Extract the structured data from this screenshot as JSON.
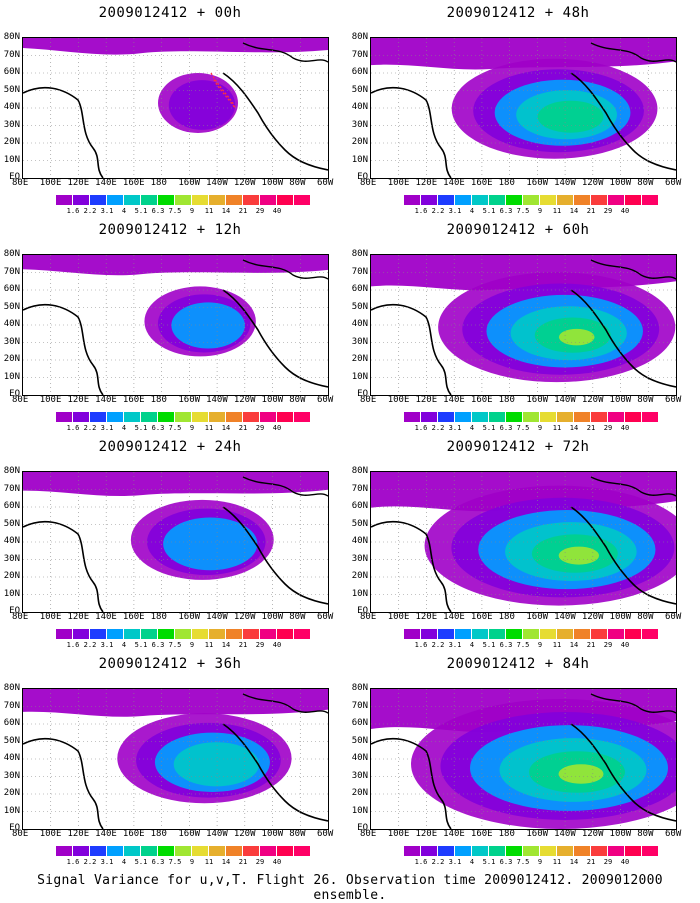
{
  "caption": "Signal Variance for u,v,T. Flight 26. Observation time 2009012412. 2009012000 ensemble.",
  "panels": [
    {
      "title": "2009012412 + 00h",
      "lead_hours": 0
    },
    {
      "title": "2009012412 + 48h",
      "lead_hours": 48
    },
    {
      "title": "2009012412 + 12h",
      "lead_hours": 12
    },
    {
      "title": "2009012412 + 60h",
      "lead_hours": 60
    },
    {
      "title": "2009012412 + 24h",
      "lead_hours": 24
    },
    {
      "title": "2009012412 + 72h",
      "lead_hours": 72
    },
    {
      "title": "2009012412 + 36h",
      "lead_hours": 36
    },
    {
      "title": "2009012412 + 84h",
      "lead_hours": 84
    }
  ],
  "lat_labels": [
    "80N",
    "70N",
    "60N",
    "50N",
    "40N",
    "30N",
    "20N",
    "10N",
    "EQ"
  ],
  "lon_labels": [
    "80E",
    "100E",
    "120E",
    "140E",
    "160E",
    "180",
    "160W",
    "140W",
    "120W",
    "100W",
    "80W",
    "60W"
  ],
  "colorbar": {
    "labels": [
      "1.6",
      "2.2",
      "3.1",
      "4",
      "5.1",
      "6.3",
      "7.5",
      "9",
      "11",
      "14",
      "21",
      "29",
      "40"
    ],
    "colors": [
      "#a000c8",
      "#8200dc",
      "#1e3cff",
      "#00a0ff",
      "#00c8c8",
      "#00d28c",
      "#00dc00",
      "#a0e632",
      "#e6dc32",
      "#e6af2d",
      "#f08228",
      "#fa3c3c",
      "#f00082"
    ]
  }
}
